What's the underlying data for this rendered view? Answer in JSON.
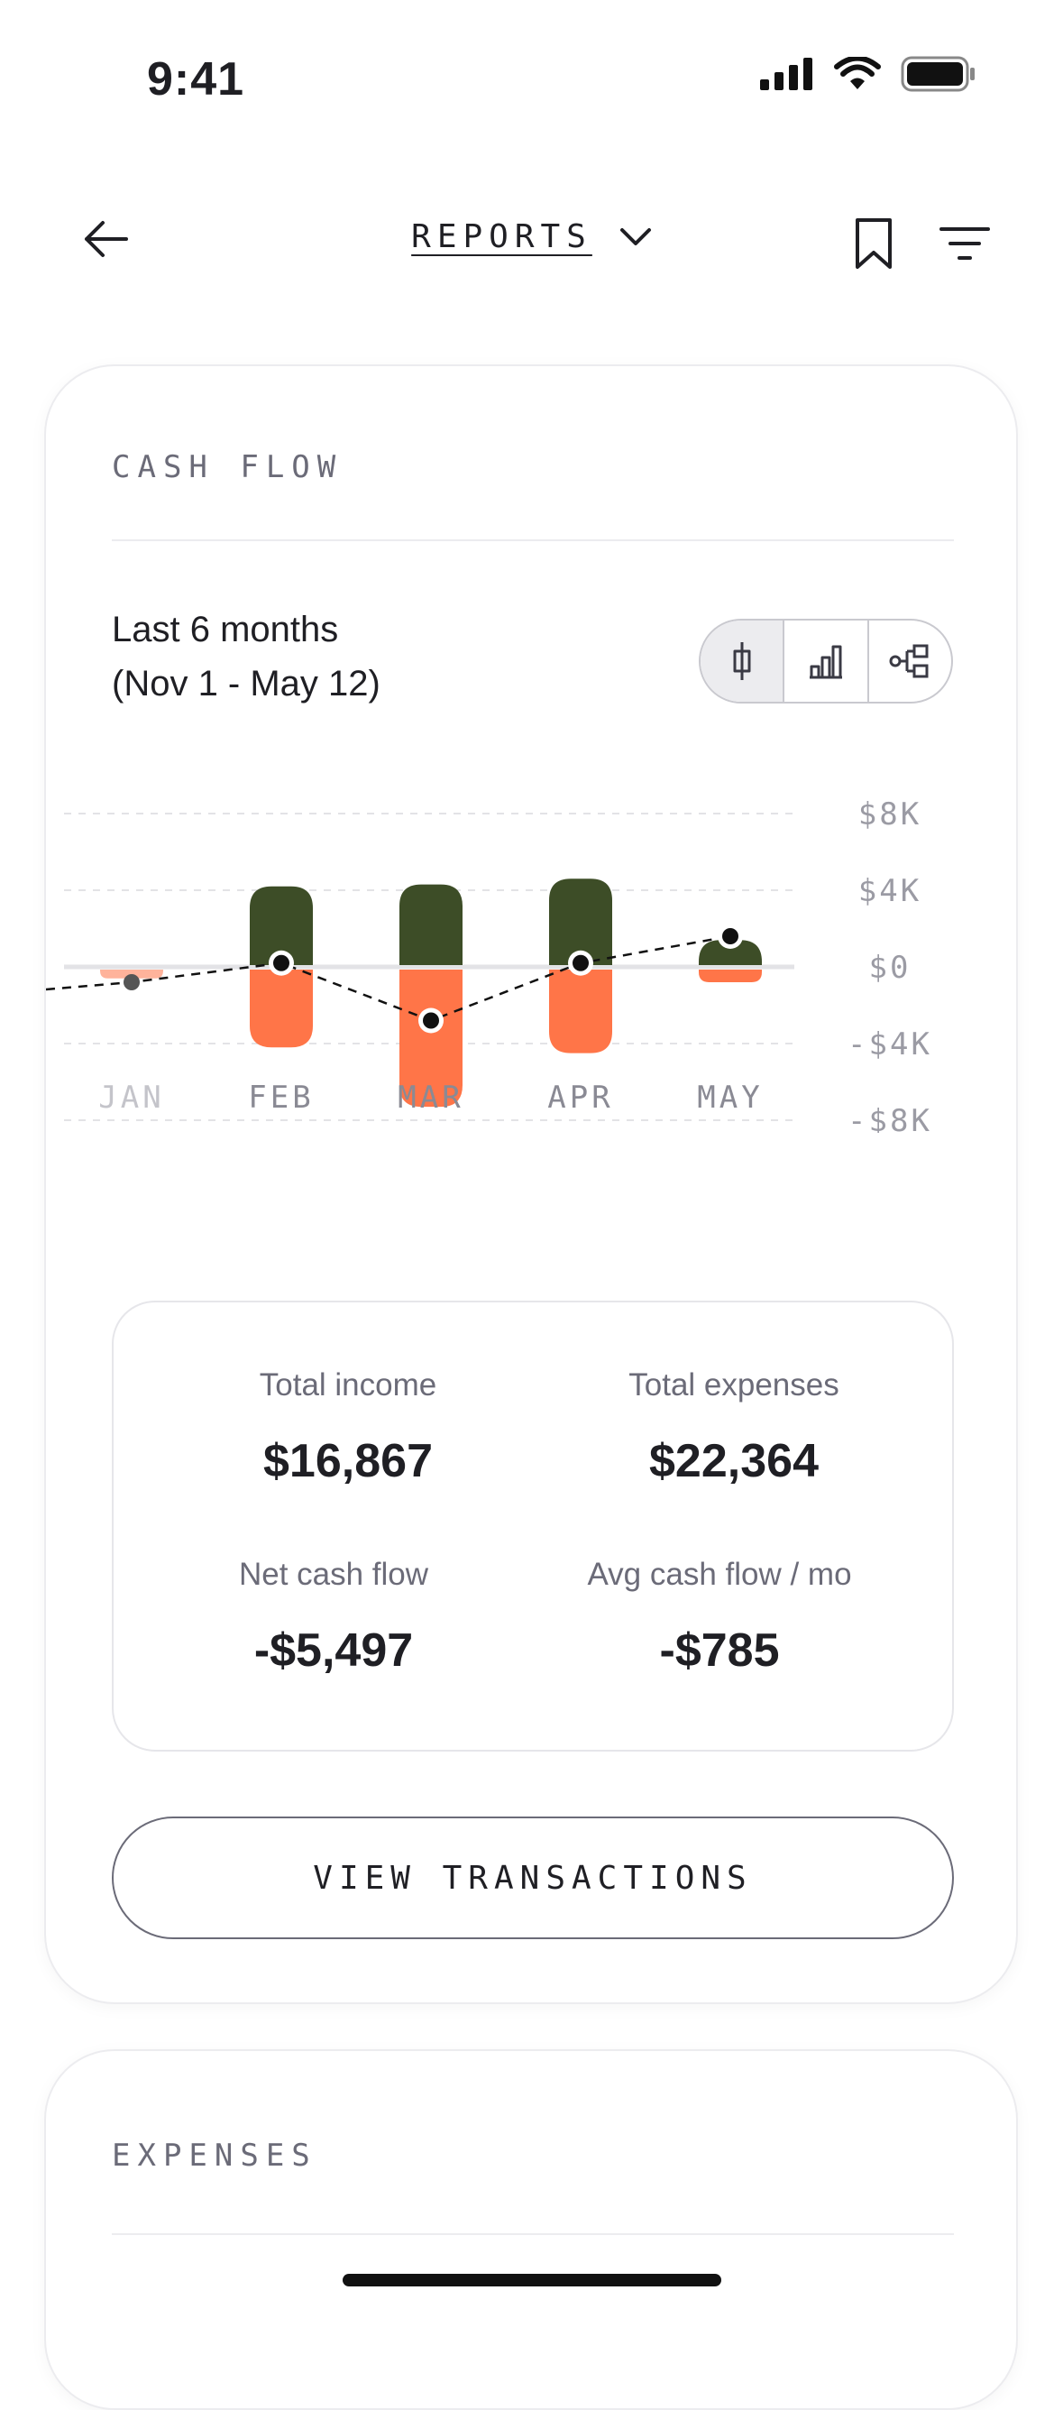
{
  "status_bar": {
    "time": "9:41"
  },
  "nav": {
    "title": "REPORTS"
  },
  "cash_flow": {
    "section_label": "CASH FLOW",
    "range_title": "Last 6 months",
    "range_dates": "(Nov 1 - May 12)",
    "view_toggle": [
      "candle-chart-icon",
      "bar-chart-icon",
      "flow-chart-icon"
    ],
    "stats": {
      "total_income_label": "Total income",
      "total_income_value": "$16,867",
      "total_expenses_label": "Total expenses",
      "total_expenses_value": "$22,364",
      "net_label": "Net cash flow",
      "net_value": "-$5,497",
      "avg_label": "Avg cash flow / mo",
      "avg_value": "-$785"
    },
    "view_transactions_label": "VIEW TRANSACTIONS"
  },
  "expenses": {
    "section_label": "EXPENSES"
  },
  "chart_data": {
    "type": "bar",
    "categories": [
      "JAN",
      "FEB",
      "MAR",
      "APR",
      "MAY"
    ],
    "series": [
      {
        "values": [
          0,
          4200,
          4300,
          4600,
          1400
        ],
        "color": "#3d4d27"
      },
      {
        "values": [
          -600,
          -4200,
          -7300,
          -4500,
          -800
        ],
        "color": "#ff7548"
      },
      {
        "values": [
          -800,
          200,
          -2800,
          200,
          1600
        ],
        "color": "#111111",
        "style": "dashed-line"
      }
    ],
    "y_ticks": [
      "$8K",
      "$4K",
      "$0",
      "-$4K",
      "-$8K"
    ],
    "ylim": [
      -8000,
      8000
    ],
    "grid": true
  }
}
